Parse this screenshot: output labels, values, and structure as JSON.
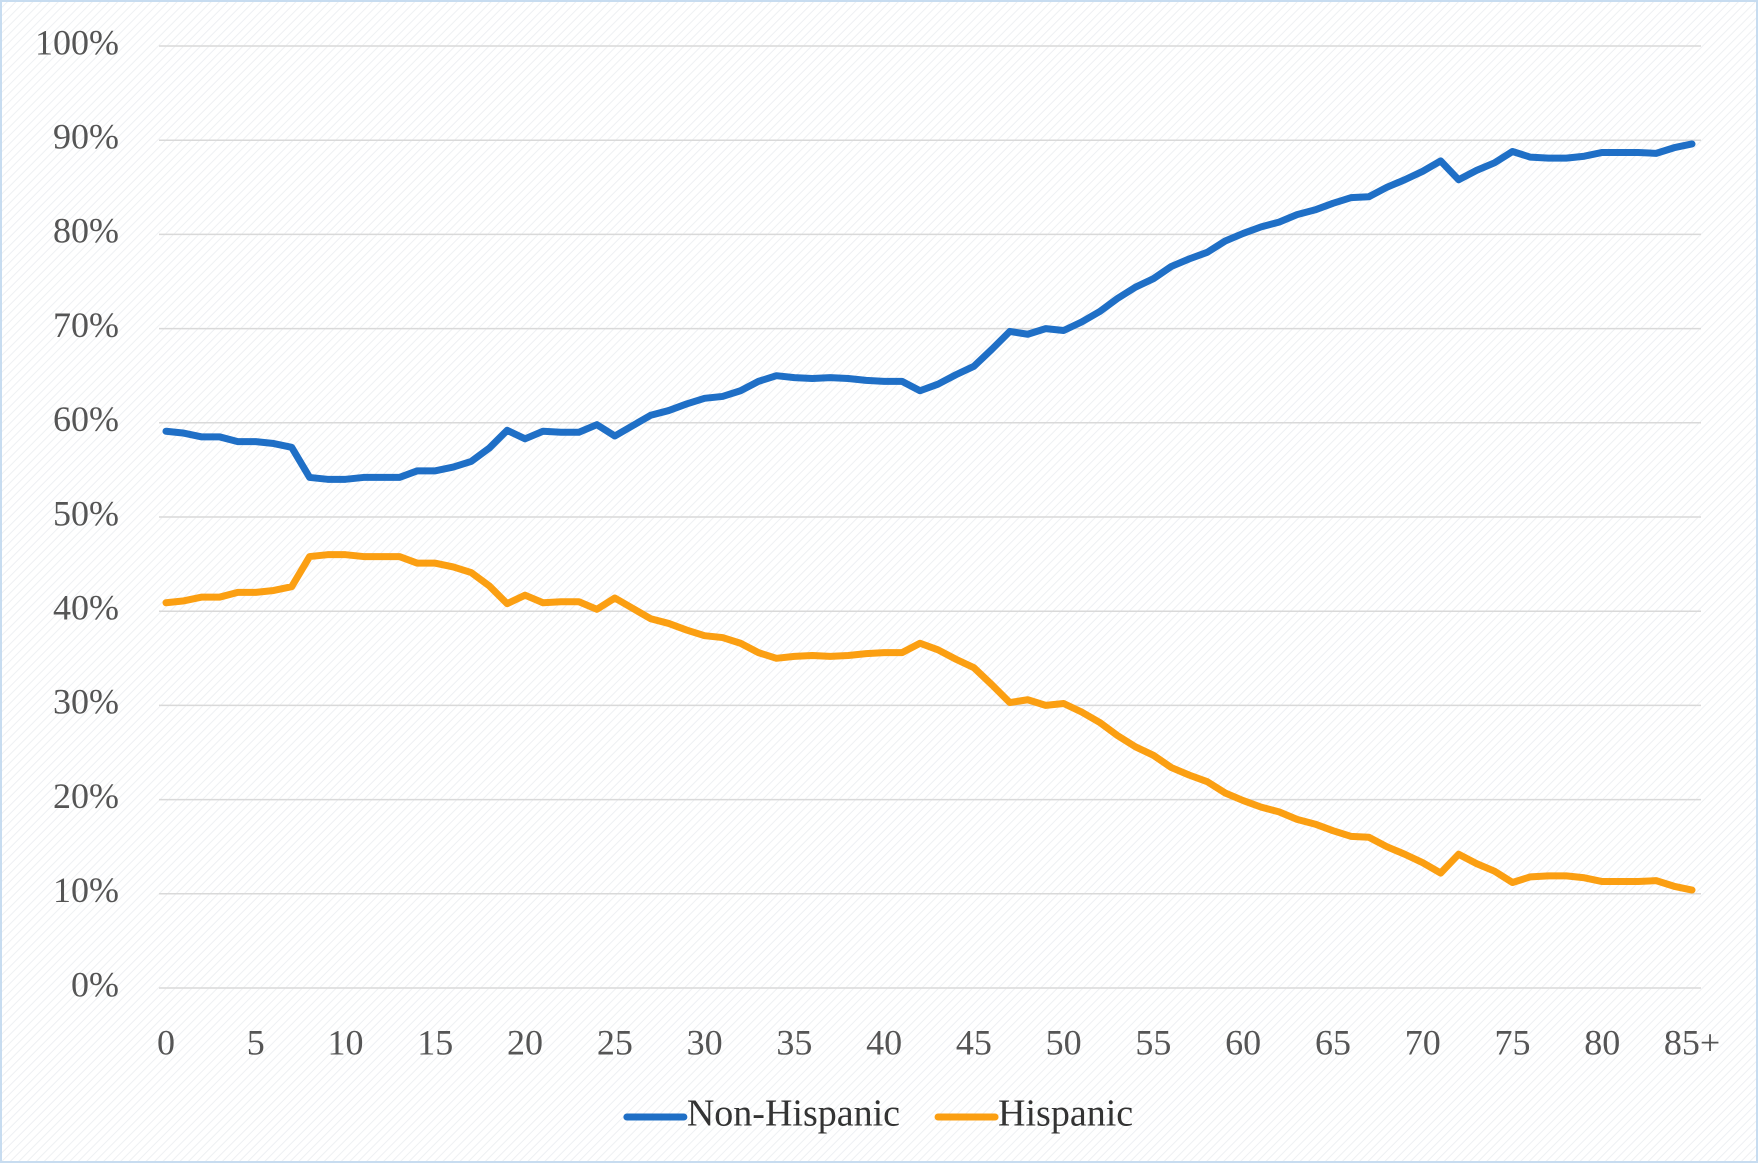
{
  "chart_data": {
    "type": "line",
    "categories": [
      "0",
      null,
      null,
      null,
      null,
      "5",
      null,
      null,
      null,
      null,
      "10",
      null,
      null,
      null,
      null,
      "15",
      null,
      null,
      null,
      null,
      "20",
      null,
      null,
      null,
      null,
      "25",
      null,
      null,
      null,
      null,
      "30",
      null,
      null,
      null,
      null,
      "35",
      null,
      null,
      null,
      null,
      "40",
      null,
      null,
      null,
      null,
      "45",
      null,
      null,
      null,
      null,
      "50",
      null,
      null,
      null,
      null,
      "55",
      null,
      null,
      null,
      null,
      "60",
      null,
      null,
      null,
      null,
      "65",
      null,
      null,
      null,
      null,
      "70",
      null,
      null,
      null,
      null,
      "75",
      null,
      null,
      null,
      null,
      "80",
      null,
      null,
      null,
      null,
      "85+"
    ],
    "series": [
      {
        "name": "Non-Hispanic",
        "color": "#1f6fc6",
        "values": [
          59.1,
          58.9,
          58.5,
          58.5,
          58.0,
          58.0,
          57.8,
          57.4,
          54.2,
          54.0,
          54.0,
          54.2,
          54.2,
          54.2,
          54.9,
          54.9,
          55.3,
          55.9,
          57.3,
          59.2,
          58.3,
          59.1,
          59.0,
          59.0,
          59.8,
          58.6,
          59.7,
          60.8,
          61.3,
          62.0,
          62.6,
          62.8,
          63.4,
          64.4,
          65.0,
          64.8,
          64.7,
          64.8,
          64.7,
          64.5,
          64.4,
          64.4,
          63.4,
          64.1,
          65.1,
          66.0,
          67.8,
          69.7,
          69.4,
          70.0,
          69.8,
          70.7,
          71.8,
          73.2,
          74.4,
          75.3,
          76.6,
          77.4,
          78.1,
          79.3,
          80.1,
          80.8,
          81.3,
          82.1,
          82.6,
          83.3,
          83.9,
          84.0,
          85.0,
          85.8,
          86.7,
          87.8,
          85.8,
          86.8,
          87.6,
          88.8,
          88.2,
          88.1,
          88.1,
          88.3,
          88.7,
          88.7,
          88.7,
          88.6,
          89.2,
          89.6
        ]
      },
      {
        "name": "Hispanic",
        "color": "#fb9f12",
        "values": [
          40.9,
          41.1,
          41.5,
          41.5,
          42.0,
          42.0,
          42.2,
          42.6,
          45.8,
          46.0,
          46.0,
          45.8,
          45.8,
          45.8,
          45.1,
          45.1,
          44.7,
          44.1,
          42.7,
          40.8,
          41.7,
          40.9,
          41.0,
          41.0,
          40.2,
          41.4,
          40.3,
          39.2,
          38.7,
          38.0,
          37.4,
          37.2,
          36.6,
          35.6,
          35.0,
          35.2,
          35.3,
          35.2,
          35.3,
          35.5,
          35.6,
          35.6,
          36.6,
          35.9,
          34.9,
          34.0,
          32.2,
          30.3,
          30.6,
          30.0,
          30.2,
          29.3,
          28.2,
          26.8,
          25.6,
          24.7,
          23.4,
          22.6,
          21.9,
          20.7,
          19.9,
          19.2,
          18.7,
          17.9,
          17.4,
          16.7,
          16.1,
          16.0,
          15.0,
          14.2,
          13.3,
          12.2,
          14.2,
          13.2,
          12.4,
          11.2,
          11.8,
          11.9,
          11.9,
          11.7,
          11.3,
          11.3,
          11.3,
          11.4,
          10.8,
          10.4
        ]
      }
    ],
    "ylim": [
      0,
      100
    ],
    "yticks": [
      {
        "value": 0,
        "label": "0%"
      },
      {
        "value": 10,
        "label": "10%"
      },
      {
        "value": 20,
        "label": "20%"
      },
      {
        "value": 30,
        "label": "30%"
      },
      {
        "value": 40,
        "label": "40%"
      },
      {
        "value": 50,
        "label": "50%"
      },
      {
        "value": 60,
        "label": "60%"
      },
      {
        "value": 70,
        "label": "70%"
      },
      {
        "value": 80,
        "label": "80%"
      },
      {
        "value": 90,
        "label": "90%"
      },
      {
        "value": 100,
        "label": "100%"
      }
    ],
    "grid": true,
    "legend": "bottom"
  }
}
